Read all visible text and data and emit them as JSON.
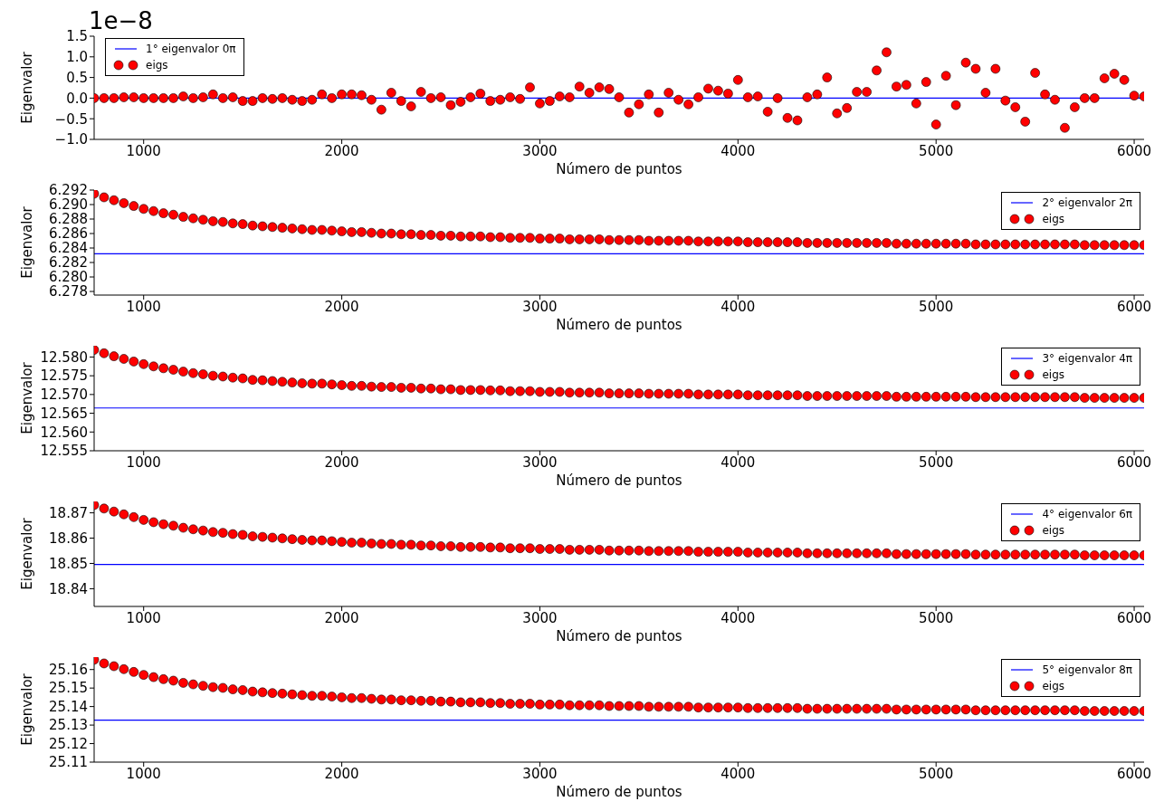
{
  "chart_data": [
    {
      "type": "scatter",
      "xlabel": "Número de puntos",
      "ylabel": "Eigenvalor",
      "annotations": [
        "1e−8"
      ],
      "legend": "top left",
      "ref_lines": [
        {
          "axis": "y",
          "value": 0,
          "label": "1° eigenvalor 0π",
          "color": "#0000ff"
        }
      ],
      "xlim": [
        750,
        6050
      ],
      "xticks": [
        1000,
        2000,
        3000,
        4000,
        5000,
        6000
      ],
      "ylim": [
        -1,
        1.5
      ],
      "yticks": [
        {
          "value": -1,
          "label": "−1.0"
        },
        {
          "value": -0.5,
          "label": "−0.5"
        },
        {
          "value": 0,
          "label": "0.0"
        },
        {
          "value": 0.5,
          "label": "0.5"
        },
        {
          "value": 1,
          "label": "1.0"
        },
        {
          "value": 1.5,
          "label": "1.5"
        }
      ],
      "x": [
        750,
        800,
        850,
        900,
        950,
        1000,
        1050,
        1100,
        1150,
        1200,
        1250,
        1300,
        1350,
        1400,
        1450,
        1500,
        1550,
        1600,
        1650,
        1700,
        1750,
        1800,
        1850,
        1900,
        1950,
        2000,
        2050,
        2100,
        2150,
        2200,
        2250,
        2300,
        2350,
        2400,
        2450,
        2500,
        2550,
        2600,
        2650,
        2700,
        2750,
        2800,
        2850,
        2900,
        2950,
        3000,
        3050,
        3100,
        3150,
        3200,
        3250,
        3300,
        3350,
        3400,
        3450,
        3500,
        3550,
        3600,
        3650,
        3700,
        3750,
        3800,
        3850,
        3900,
        3950,
        4000,
        4050,
        4100,
        4150,
        4200,
        4250,
        4300,
        4350,
        4400,
        4450,
        4500,
        4550,
        4600,
        4650,
        4700,
        4750,
        4800,
        4850,
        4900,
        4950,
        5000,
        5050,
        5100,
        5150,
        5200,
        5250,
        5300,
        5350,
        5400,
        5450,
        5500,
        5550,
        5600,
        5650,
        5700,
        5750,
        5800,
        5850,
        5900,
        5950,
        6000,
        6050
      ],
      "series": [
        {
          "name": "eigs",
          "color": "#ff0000",
          "marker": "circle",
          "values": [
            0,
            0,
            0,
            0.02,
            0.02,
            0,
            0,
            0,
            0,
            0.04,
            0,
            0.02,
            0.09,
            0,
            0.02,
            -0.07,
            -0.07,
            0,
            -0.02,
            0,
            -0.04,
            -0.07,
            -0.04,
            0.09,
            0,
            0.09,
            0.09,
            0.07,
            -0.04,
            -0.28,
            0.13,
            -0.07,
            -0.2,
            0.15,
            0,
            0.02,
            -0.17,
            -0.09,
            0.02,
            0.11,
            -0.07,
            -0.04,
            0.02,
            -0.02,
            0.26,
            -0.13,
            -0.07,
            0.04,
            0.02,
            0.28,
            0.13,
            0.26,
            0.22,
            0.02,
            -0.35,
            -0.15,
            0.09,
            -0.35,
            0.13,
            -0.04,
            -0.15,
            0.02,
            0.23,
            0.18,
            0.11,
            0.44,
            0.02,
            0.04,
            -0.33,
            0,
            -0.48,
            -0.54,
            0.02,
            0.09,
            0.5,
            -0.37,
            -0.24,
            0.15,
            0.15,
            0.67,
            1.11,
            0.28,
            0.32,
            -0.13,
            0.39,
            -0.64,
            0.54,
            -0.17,
            0.86,
            0.71,
            0.13,
            0.71,
            -0.06,
            -0.22,
            -0.57,
            0.61,
            0.09,
            -0.04,
            -0.72,
            -0.22,
            0,
            0,
            0.48,
            0.59,
            0.44,
            0.06,
            0.04
          ]
        }
      ]
    },
    {
      "type": "scatter",
      "xlabel": "Número de puntos",
      "ylabel": "Eigenvalor",
      "legend": "top right",
      "ref_lines": [
        {
          "axis": "y",
          "value": 6.2832,
          "label": "2° eigenvalor 2π",
          "color": "#0000ff"
        }
      ],
      "xlim": [
        750,
        6050
      ],
      "xticks": [
        1000,
        2000,
        3000,
        4000,
        5000,
        6000
      ],
      "ylim": [
        6.2775,
        6.292
      ],
      "yticks": [
        6.278,
        {
          "value": 6.28,
          "label": "6.280"
        },
        6.282,
        6.284,
        6.286,
        6.288,
        {
          "value": 6.29,
          "label": "6.290"
        },
        6.292
      ],
      "x": [
        750,
        800,
        850,
        900,
        950,
        1000,
        1050,
        1100,
        1150,
        1200,
        1250,
        1300,
        1350,
        1400,
        1450,
        1500,
        1550,
        1600,
        1650,
        1700,
        1750,
        1800,
        1850,
        1900,
        1950,
        2000,
        2050,
        2100,
        2150,
        2200,
        2250,
        2300,
        2350,
        2400,
        2450,
        2500,
        2550,
        2600,
        2650,
        2700,
        2750,
        2800,
        2850,
        2900,
        2950,
        3000,
        3050,
        3100,
        3150,
        3200,
        3250,
        3300,
        3350,
        3400,
        3450,
        3500,
        3550,
        3600,
        3650,
        3700,
        3750,
        3800,
        3850,
        3900,
        3950,
        4000,
        4050,
        4100,
        4150,
        4200,
        4250,
        4300,
        4350,
        4400,
        4450,
        4500,
        4550,
        4600,
        4650,
        4700,
        4750,
        4800,
        4850,
        4900,
        4950,
        5000,
        5050,
        5100,
        5150,
        5200,
        5250,
        5300,
        5350,
        5400,
        5450,
        5500,
        5550,
        5600,
        5650,
        5700,
        5750,
        5800,
        5850,
        5900,
        5950,
        6000,
        6050
      ],
      "series": [
        {
          "name": "eigs",
          "color": "#ff0000",
          "marker": "circle",
          "values": [
            6.2915,
            6.291,
            6.2906,
            6.2902,
            6.2898,
            6.2894,
            6.2891,
            6.2888,
            6.2886,
            6.2883,
            6.2881,
            6.2879,
            6.2877,
            6.2876,
            6.2874,
            6.2873,
            6.2871,
            6.287,
            6.2869,
            6.2868,
            6.2867,
            6.2866,
            6.2865,
            6.2865,
            6.2864,
            6.2863,
            6.2862,
            6.2862,
            6.2861,
            6.286,
            6.286,
            6.2859,
            6.2859,
            6.2858,
            6.2858,
            6.2857,
            6.2857,
            6.2856,
            6.2856,
            6.2856,
            6.2855,
            6.2855,
            6.2854,
            6.2854,
            6.2854,
            6.2853,
            6.2853,
            6.2853,
            6.2852,
            6.2852,
            6.2852,
            6.2852,
            6.2851,
            6.2851,
            6.2851,
            6.2851,
            6.285,
            6.285,
            6.285,
            6.285,
            6.285,
            6.2849,
            6.2849,
            6.2849,
            6.2849,
            6.2849,
            6.2848,
            6.2848,
            6.2848,
            6.2848,
            6.2848,
            6.2848,
            6.2847,
            6.2847,
            6.2847,
            6.2847,
            6.2847,
            6.2847,
            6.2847,
            6.2847,
            6.2847,
            6.2846,
            6.2846,
            6.2846,
            6.2846,
            6.2846,
            6.2846,
            6.2846,
            6.2846,
            6.2845,
            6.2845,
            6.2845,
            6.2845,
            6.2845,
            6.2845,
            6.2845,
            6.2845,
            6.2845,
            6.2845,
            6.2845,
            6.2844,
            6.2844,
            6.2844,
            6.2844,
            6.2844,
            6.2844,
            6.2844
          ]
        }
      ]
    },
    {
      "type": "scatter",
      "xlabel": "Número de puntos",
      "ylabel": "Eigenvalor",
      "legend": "top right",
      "ref_lines": [
        {
          "axis": "y",
          "value": 12.5664,
          "label": "3° eigenvalor 4π",
          "color": "#0000ff"
        }
      ],
      "xlim": [
        750,
        6050
      ],
      "xticks": [
        1000,
        2000,
        3000,
        4000,
        5000,
        6000
      ],
      "ylim": [
        12.555,
        12.583
      ],
      "yticks": [
        12.555,
        {
          "value": 12.56,
          "label": "12.560"
        },
        12.565,
        {
          "value": 12.57,
          "label": "12.570"
        },
        12.575,
        {
          "value": 12.58,
          "label": "12.580"
        }
      ],
      "x": [
        750,
        800,
        850,
        900,
        950,
        1000,
        1050,
        1100,
        1150,
        1200,
        1250,
        1300,
        1350,
        1400,
        1450,
        1500,
        1550,
        1600,
        1650,
        1700,
        1750,
        1800,
        1850,
        1900,
        1950,
        2000,
        2050,
        2100,
        2150,
        2200,
        2250,
        2300,
        2350,
        2400,
        2450,
        2500,
        2550,
        2600,
        2650,
        2700,
        2750,
        2800,
        2850,
        2900,
        2950,
        3000,
        3050,
        3100,
        3150,
        3200,
        3250,
        3300,
        3350,
        3400,
        3450,
        3500,
        3550,
        3600,
        3650,
        3700,
        3750,
        3800,
        3850,
        3900,
        3950,
        4000,
        4050,
        4100,
        4150,
        4200,
        4250,
        4300,
        4350,
        4400,
        4450,
        4500,
        4550,
        4600,
        4650,
        4700,
        4750,
        4800,
        4850,
        4900,
        4950,
        5000,
        5050,
        5100,
        5150,
        5200,
        5250,
        5300,
        5350,
        5400,
        5450,
        5500,
        5550,
        5600,
        5650,
        5700,
        5750,
        5800,
        5850,
        5900,
        5950,
        6000,
        6050
      ],
      "series": [
        {
          "name": "eigs",
          "color": "#ff0000",
          "marker": "circle",
          "values": [
            12.5819,
            12.581,
            12.5802,
            12.5795,
            12.5788,
            12.5781,
            12.5775,
            12.577,
            12.5766,
            12.5761,
            12.5757,
            12.5754,
            12.575,
            12.5748,
            12.5745,
            12.5743,
            12.5739,
            12.5738,
            12.5736,
            12.5734,
            12.5732,
            12.573,
            12.5729,
            12.5729,
            12.5727,
            12.5725,
            12.5723,
            12.5723,
            12.5721,
            12.572,
            12.572,
            12.5718,
            12.5718,
            12.5716,
            12.5716,
            12.5714,
            12.5714,
            12.5712,
            12.5712,
            12.5712,
            12.5711,
            12.5711,
            12.5709,
            12.5709,
            12.5709,
            12.5707,
            12.5707,
            12.5707,
            12.5705,
            12.5705,
            12.5705,
            12.5705,
            12.5703,
            12.5703,
            12.5703,
            12.5703,
            12.5702,
            12.5702,
            12.5702,
            12.5702,
            12.5702,
            12.57,
            12.57,
            12.57,
            12.57,
            12.57,
            12.5698,
            12.5698,
            12.5698,
            12.5698,
            12.5698,
            12.5698,
            12.5696,
            12.5696,
            12.5696,
            12.5696,
            12.5696,
            12.5696,
            12.5696,
            12.5696,
            12.5696,
            12.5694,
            12.5694,
            12.5694,
            12.5694,
            12.5694,
            12.5694,
            12.5694,
            12.5694,
            12.5693,
            12.5693,
            12.5693,
            12.5693,
            12.5693,
            12.5693,
            12.5693,
            12.5693,
            12.5693,
            12.5693,
            12.5693,
            12.5691,
            12.5691,
            12.5691,
            12.5691,
            12.5691,
            12.5691,
            12.5691
          ]
        }
      ]
    },
    {
      "type": "scatter",
      "xlabel": "Número de puntos",
      "ylabel": "Eigenvalor",
      "legend": "top right",
      "ref_lines": [
        {
          "axis": "y",
          "value": 18.8496,
          "label": "4° eigenvalor 6π",
          "color": "#0000ff"
        }
      ],
      "xlim": [
        750,
        6050
      ],
      "xticks": [
        1000,
        2000,
        3000,
        4000,
        5000,
        6000
      ],
      "ylim": [
        18.833,
        18.8745
      ],
      "yticks": [
        18.84,
        18.85,
        18.86,
        18.87
      ],
      "x": [
        750,
        800,
        850,
        900,
        950,
        1000,
        1050,
        1100,
        1150,
        1200,
        1250,
        1300,
        1350,
        1400,
        1450,
        1500,
        1550,
        1600,
        1650,
        1700,
        1750,
        1800,
        1850,
        1900,
        1950,
        2000,
        2050,
        2100,
        2150,
        2200,
        2250,
        2300,
        2350,
        2400,
        2450,
        2500,
        2550,
        2600,
        2650,
        2700,
        2750,
        2800,
        2850,
        2900,
        2950,
        3000,
        3050,
        3100,
        3150,
        3200,
        3250,
        3300,
        3350,
        3400,
        3450,
        3500,
        3550,
        3600,
        3650,
        3700,
        3750,
        3800,
        3850,
        3900,
        3950,
        4000,
        4050,
        4100,
        4150,
        4200,
        4250,
        4300,
        4350,
        4400,
        4450,
        4500,
        4550,
        4600,
        4650,
        4700,
        4750,
        4800,
        4850,
        4900,
        4950,
        5000,
        5050,
        5100,
        5150,
        5200,
        5250,
        5300,
        5350,
        5400,
        5450,
        5500,
        5550,
        5600,
        5650,
        5700,
        5750,
        5800,
        5850,
        5900,
        5950,
        6000,
        6050
      ],
      "series": [
        {
          "name": "eigs",
          "color": "#ff0000",
          "marker": "circle",
          "values": [
            18.8731,
            18.8717,
            18.8705,
            18.8694,
            18.8683,
            18.8672,
            18.8663,
            18.8655,
            18.8649,
            18.8641,
            18.8635,
            18.863,
            18.8624,
            18.8621,
            18.8616,
            18.8613,
            18.8607,
            18.8605,
            18.8602,
            18.8599,
            18.8596,
            18.8593,
            18.8591,
            18.8591,
            18.8588,
            18.8585,
            18.8582,
            18.8582,
            18.8579,
            18.8577,
            18.8577,
            18.8574,
            18.8574,
            18.8571,
            18.8571,
            18.8568,
            18.8568,
            18.8565,
            18.8565,
            18.8565,
            18.8563,
            18.8563,
            18.856,
            18.856,
            18.856,
            18.8557,
            18.8557,
            18.8557,
            18.8554,
            18.8554,
            18.8554,
            18.8554,
            18.8551,
            18.8551,
            18.8551,
            18.8551,
            18.8549,
            18.8549,
            18.8549,
            18.8549,
            18.8549,
            18.8546,
            18.8546,
            18.8546,
            18.8546,
            18.8546,
            18.8543,
            18.8543,
            18.8543,
            18.8543,
            18.8543,
            18.8543,
            18.854,
            18.854,
            18.854,
            18.854,
            18.854,
            18.854,
            18.854,
            18.854,
            18.854,
            18.8537,
            18.8537,
            18.8537,
            18.8537,
            18.8537,
            18.8537,
            18.8537,
            18.8537,
            18.8535,
            18.8535,
            18.8535,
            18.8535,
            18.8535,
            18.8535,
            18.8535,
            18.8535,
            18.8535,
            18.8535,
            18.8535,
            18.8532,
            18.8532,
            18.8532,
            18.8532,
            18.8532,
            18.8532,
            18.8532
          ]
        }
      ]
    },
    {
      "type": "scatter",
      "xlabel": "Número de puntos",
      "ylabel": "Eigenvalor",
      "legend": "top right",
      "ref_lines": [
        {
          "axis": "y",
          "value": 25.1327,
          "label": "5° eigenvalor 8π",
          "color": "#0000ff"
        }
      ],
      "xlim": [
        750,
        6050
      ],
      "xticks": [
        1000,
        2000,
        3000,
        4000,
        5000,
        6000
      ],
      "ylim": [
        25.11,
        25.1667
      ],
      "yticks": [
        25.11,
        25.12,
        25.13,
        25.14,
        25.15,
        25.16
      ],
      "x": [
        750,
        800,
        850,
        900,
        950,
        1000,
        1050,
        1100,
        1150,
        1200,
        1250,
        1300,
        1350,
        1400,
        1450,
        1500,
        1550,
        1600,
        1650,
        1700,
        1750,
        1800,
        1850,
        1900,
        1950,
        2000,
        2050,
        2100,
        2150,
        2200,
        2250,
        2300,
        2350,
        2400,
        2450,
        2500,
        2550,
        2600,
        2650,
        2700,
        2750,
        2800,
        2850,
        2900,
        2950,
        3000,
        3050,
        3100,
        3150,
        3200,
        3250,
        3300,
        3350,
        3400,
        3450,
        3500,
        3550,
        3600,
        3650,
        3700,
        3750,
        3800,
        3850,
        3900,
        3950,
        4000,
        4050,
        4100,
        4150,
        4200,
        4250,
        4300,
        4350,
        4400,
        4450,
        4500,
        4550,
        4600,
        4650,
        4700,
        4750,
        4800,
        4850,
        4900,
        4950,
        5000,
        5050,
        5100,
        5150,
        5200,
        5250,
        5300,
        5350,
        5400,
        5450,
        5500,
        5550,
        5600,
        5650,
        5700,
        5750,
        5800,
        5850,
        5900,
        5950,
        6000,
        6050
      ],
      "series": [
        {
          "name": "eigs",
          "color": "#ff0000",
          "marker": "circle",
          "values": [
            25.1653,
            25.1633,
            25.1618,
            25.1602,
            25.1587,
            25.1571,
            25.1559,
            25.1548,
            25.154,
            25.1528,
            25.152,
            25.1512,
            25.1505,
            25.1501,
            25.1493,
            25.1489,
            25.1481,
            25.1477,
            25.1473,
            25.147,
            25.1466,
            25.1462,
            25.1458,
            25.1458,
            25.1454,
            25.145,
            25.1446,
            25.1446,
            25.1442,
            25.1438,
            25.1438,
            25.1434,
            25.1434,
            25.1431,
            25.1431,
            25.1427,
            25.1427,
            25.1423,
            25.1423,
            25.1423,
            25.1419,
            25.1419,
            25.1415,
            25.1415,
            25.1415,
            25.1411,
            25.1411,
            25.1411,
            25.1407,
            25.1407,
            25.1407,
            25.1407,
            25.1403,
            25.1403,
            25.1403,
            25.1403,
            25.1399,
            25.1399,
            25.1399,
            25.1399,
            25.1399,
            25.1395,
            25.1395,
            25.1395,
            25.1395,
            25.1395,
            25.1392,
            25.1392,
            25.1392,
            25.1392,
            25.1392,
            25.1392,
            25.1388,
            25.1388,
            25.1388,
            25.1388,
            25.1388,
            25.1388,
            25.1388,
            25.1388,
            25.1388,
            25.1384,
            25.1384,
            25.1384,
            25.1384,
            25.1384,
            25.1384,
            25.1384,
            25.1384,
            25.138,
            25.138,
            25.138,
            25.138,
            25.138,
            25.138,
            25.138,
            25.138,
            25.138,
            25.138,
            25.138,
            25.1376,
            25.1376,
            25.1376,
            25.1376,
            25.1376,
            25.1376,
            25.1376
          ]
        }
      ]
    }
  ]
}
